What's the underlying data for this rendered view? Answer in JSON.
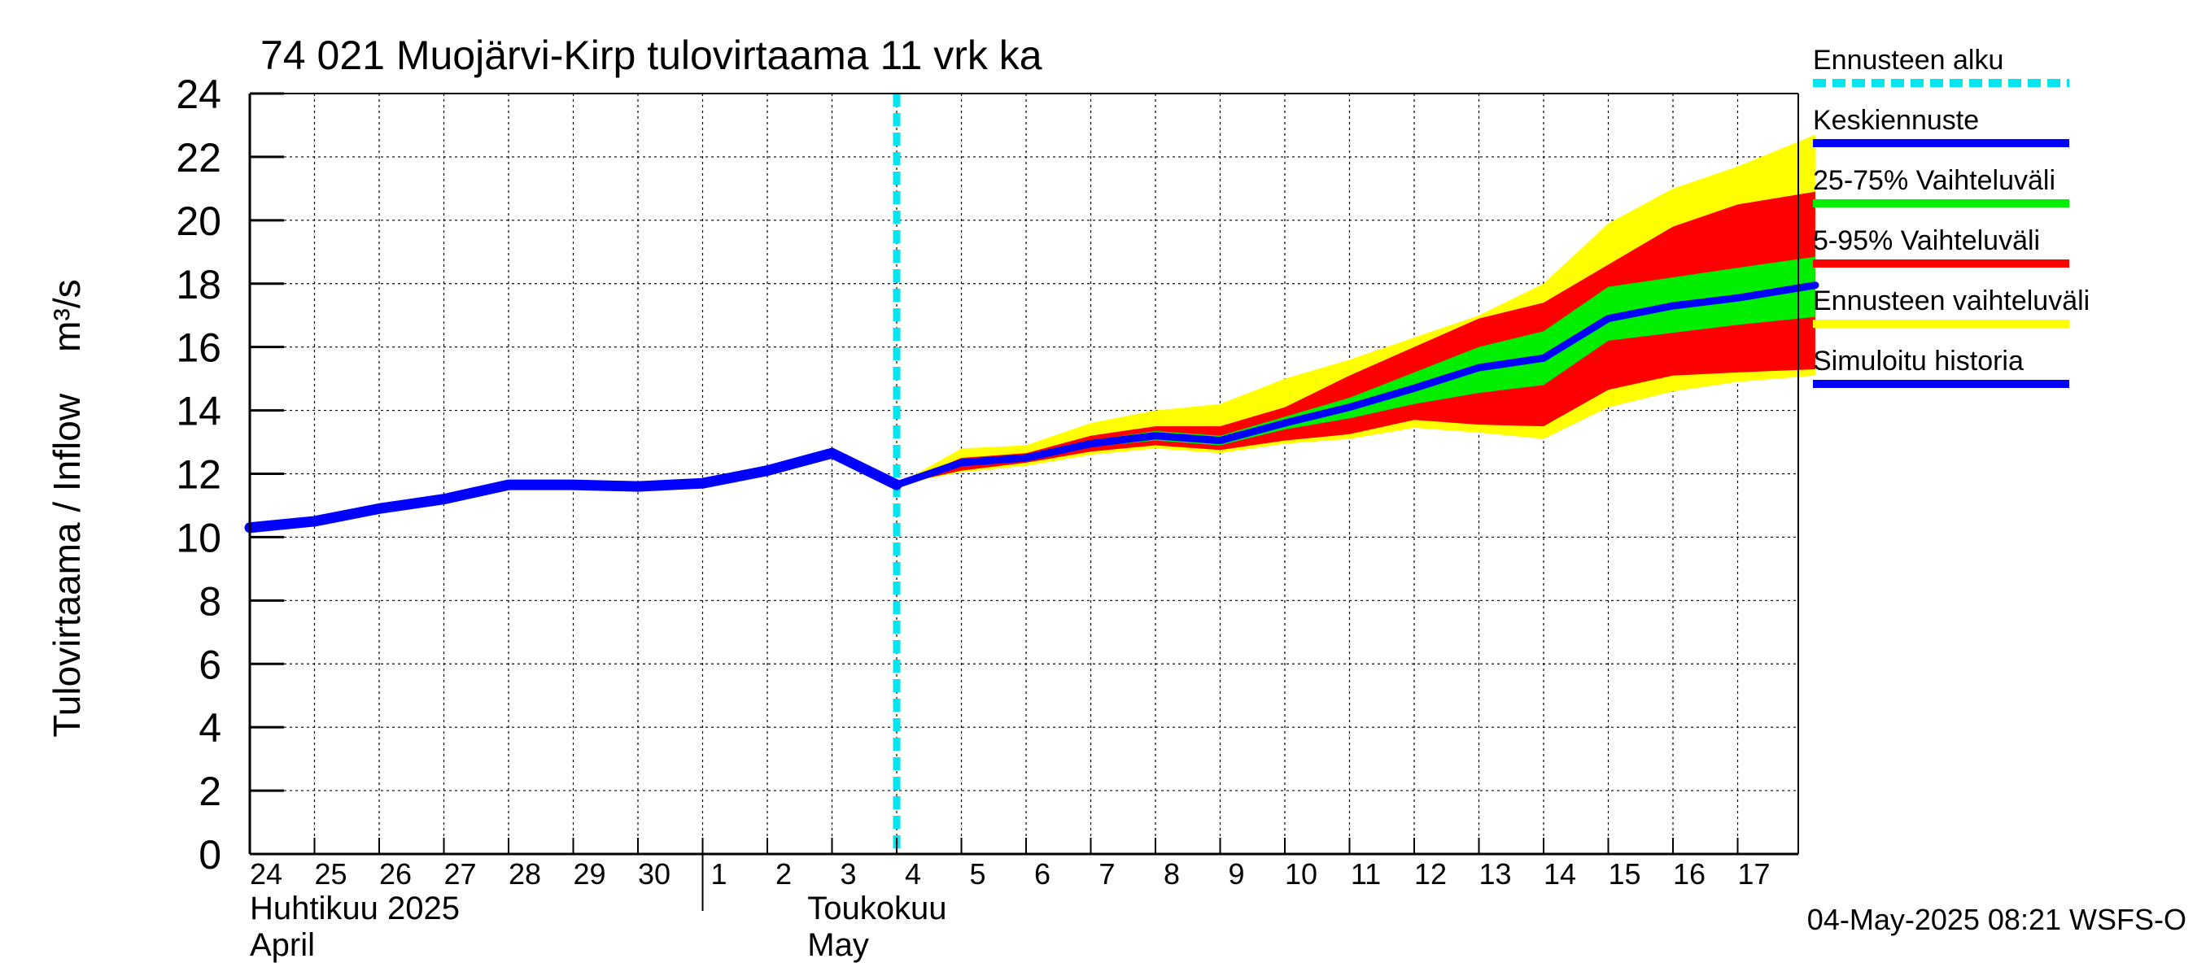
{
  "chart_data": {
    "type": "area",
    "title": "74 021 Muojärvi-Kirp tulovirtaama 11 vrk ka",
    "ylabel": "Tulovirtaama / Inflow    m³/s",
    "ylim": [
      0,
      24
    ],
    "yticks": [
      0,
      2,
      4,
      6,
      8,
      10,
      12,
      14,
      16,
      18,
      20,
      22,
      24
    ],
    "x_start_date": "2025-04-24",
    "xlim_days": [
      0,
      24.2
    ],
    "xtick_labels": [
      "24",
      "25",
      "26",
      "27",
      "28",
      "29",
      "30",
      "1",
      "2",
      "3",
      "4",
      "5",
      "6",
      "7",
      "8",
      "9",
      "10",
      "11",
      "12",
      "13",
      "14",
      "15",
      "16",
      "17"
    ],
    "month_labels": [
      {
        "fi": "Huhtikuu  2025",
        "en": "April"
      },
      {
        "fi": "Toukokuu",
        "en": "May"
      }
    ],
    "grid": true,
    "legend_position": "right",
    "forecast_start_day": 10,
    "series": [
      {
        "name": "Simuloitu historia",
        "color": "#0000ff",
        "x": [
          0,
          1,
          2,
          3,
          4,
          5,
          6,
          7,
          8,
          9,
          10
        ],
        "values": [
          10.3,
          10.5,
          10.9,
          11.2,
          11.65,
          11.65,
          11.6,
          11.7,
          12.1,
          12.65,
          11.65
        ]
      },
      {
        "name": "Keskiennuste",
        "color": "#0000ff",
        "x": [
          10,
          11,
          12,
          13,
          14,
          15,
          16,
          17,
          18,
          19,
          20,
          21,
          22,
          23,
          24.2
        ],
        "values": [
          11.65,
          12.35,
          12.5,
          12.95,
          13.2,
          13.05,
          13.6,
          14.1,
          14.7,
          15.35,
          15.65,
          16.9,
          17.3,
          17.55,
          17.95
        ]
      },
      {
        "name": "25-75% Vaihteluväli",
        "color": "#00ee00",
        "x": [
          10,
          11,
          12,
          13,
          14,
          15,
          16,
          17,
          18,
          19,
          20,
          21,
          22,
          23,
          24.2
        ],
        "upper": [
          11.65,
          12.4,
          12.55,
          13.05,
          13.35,
          13.2,
          13.8,
          14.4,
          15.2,
          16.0,
          16.5,
          17.9,
          18.2,
          18.5,
          18.85
        ],
        "lower": [
          11.65,
          12.3,
          12.45,
          12.85,
          13.05,
          12.9,
          13.4,
          13.75,
          14.2,
          14.55,
          14.8,
          16.2,
          16.45,
          16.7,
          16.95
        ]
      },
      {
        "name": "5-95% Vaihteluväli",
        "color": "#ff0000",
        "x": [
          10,
          11,
          12,
          13,
          14,
          15,
          16,
          17,
          18,
          19,
          20,
          21,
          22,
          23,
          24.2
        ],
        "upper": [
          11.65,
          12.5,
          12.65,
          13.2,
          13.5,
          13.5,
          14.1,
          15.1,
          16.0,
          16.9,
          17.4,
          18.6,
          19.8,
          20.5,
          20.9
        ],
        "lower": [
          11.65,
          12.1,
          12.35,
          12.7,
          12.9,
          12.75,
          13.05,
          13.25,
          13.7,
          13.55,
          13.5,
          14.65,
          15.1,
          15.2,
          15.3
        ]
      },
      {
        "name": "Ennusteen vaihteluväli",
        "color": "#ffff00",
        "x": [
          10,
          11,
          12,
          13,
          14,
          15,
          16,
          17,
          18,
          19,
          20,
          21,
          22,
          23,
          24.2
        ],
        "upper": [
          11.65,
          12.8,
          12.9,
          13.6,
          14.0,
          14.2,
          15.0,
          15.6,
          16.3,
          17.0,
          18.0,
          19.9,
          21.0,
          21.7,
          22.7
        ],
        "lower": [
          11.65,
          12.05,
          12.25,
          12.6,
          12.8,
          12.65,
          12.95,
          13.1,
          13.45,
          13.3,
          13.1,
          14.1,
          14.6,
          14.9,
          15.1
        ]
      }
    ],
    "legend": [
      {
        "label": "Ennusteen alku",
        "color": "#00e5ee",
        "style": "dashed"
      },
      {
        "label": "Keskiennuste",
        "color": "#0000ff",
        "style": "solid"
      },
      {
        "label": "25-75% Vaihteluväli",
        "color": "#00ee00",
        "style": "solid"
      },
      {
        "label": "5-95% Vaihteluväli",
        "color": "#ff0000",
        "style": "solid"
      },
      {
        "label": "Ennusteen vaihteluväli",
        "color": "#ffff00",
        "style": "solid"
      },
      {
        "label": "Simuloitu historia",
        "color": "#0000ff",
        "style": "solid"
      }
    ],
    "footer": "04-May-2025 08:21 WSFS-O"
  }
}
